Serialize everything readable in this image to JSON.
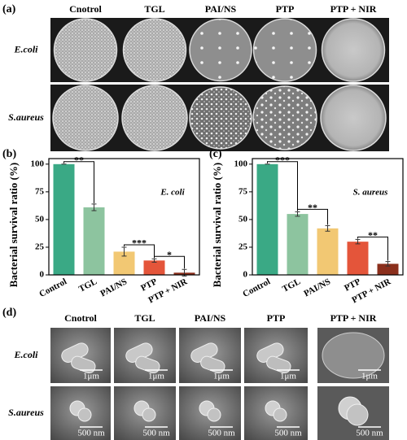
{
  "panel_a": {
    "label": "(a)",
    "columns": [
      "Cnotrol",
      "TGL",
      "PAI/NS",
      "PTP",
      "PTP + NIR"
    ],
    "rows": [
      "E.coli",
      "S.aureus"
    ]
  },
  "chart_data": [
    {
      "type": "bar",
      "label": "(b)",
      "ylabel": "Bacterial survival ratio (%)",
      "annotation": "E. coli",
      "categories": [
        "Control",
        "TGL",
        "PAI/NS",
        "PTP",
        "PTP + NIR"
      ],
      "values": [
        100,
        61,
        21,
        13,
        2
      ],
      "errors": [
        0,
        3,
        4,
        1.5,
        3
      ],
      "colors": [
        "#3aa985",
        "#8dc49f",
        "#f2c873",
        "#e4553a",
        "#8b2f1c"
      ],
      "ylim": [
        0,
        105
      ],
      "yticks": [
        0,
        25,
        50,
        75,
        100
      ],
      "significance": [
        "**",
        "***",
        "*"
      ]
    },
    {
      "type": "bar",
      "label": "(c)",
      "ylabel": "Bacterial survival ratio (%)",
      "annotation": "S. aureus",
      "categories": [
        "Control",
        "TGL",
        "PAI/NS",
        "PTP",
        "PTP + NIR"
      ],
      "values": [
        100,
        55,
        42,
        30,
        10
      ],
      "errors": [
        0,
        2,
        2.5,
        2,
        2
      ],
      "colors": [
        "#3aa985",
        "#8dc49f",
        "#f2c873",
        "#e4553a",
        "#8b2f1c"
      ],
      "ylim": [
        0,
        105
      ],
      "yticks": [
        0,
        25,
        50,
        75,
        100
      ],
      "significance": [
        "***",
        "**",
        "**"
      ]
    }
  ],
  "panel_d": {
    "label": "(d)",
    "columns": [
      "Cnotrol",
      "TGL",
      "PAI/NS",
      "PTP",
      "PTP + NIR"
    ],
    "rows": [
      "E.coli",
      "S.aureus"
    ],
    "scale_bars": [
      "1μm",
      "500 nm"
    ]
  }
}
